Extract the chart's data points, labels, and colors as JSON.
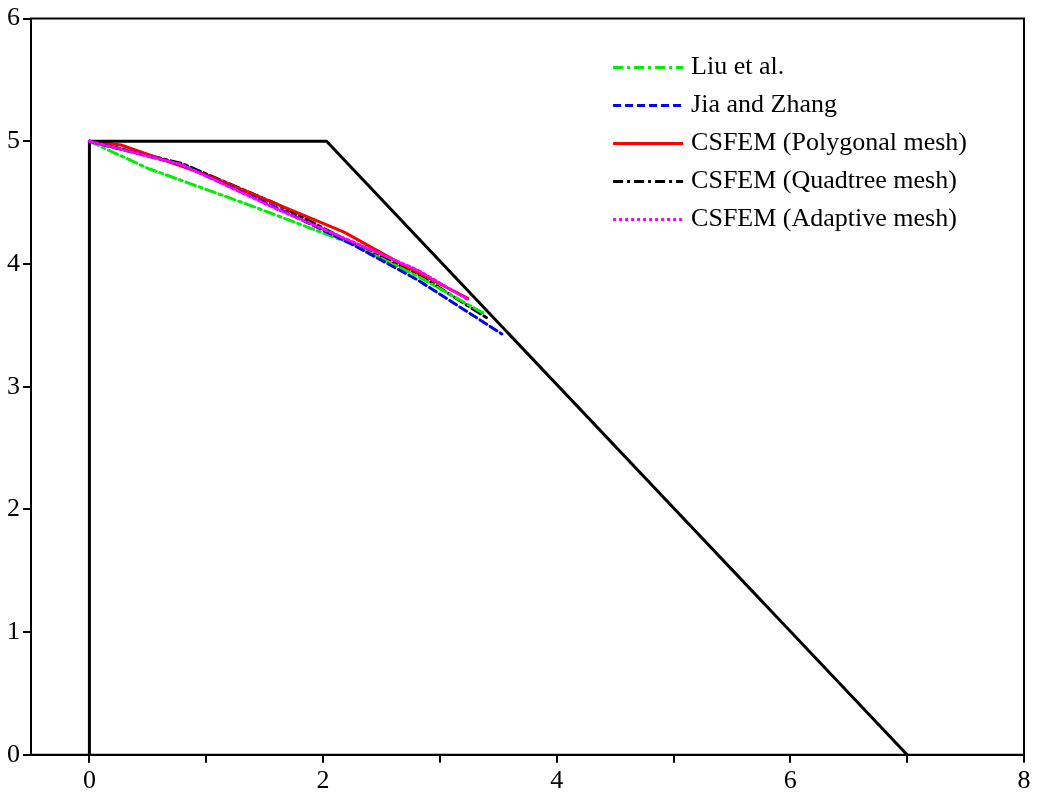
{
  "chart_data": {
    "type": "line",
    "xlim": [
      -0.5,
      8
    ],
    "ylim": [
      0,
      6
    ],
    "xticks": [
      0,
      {
        "value": 1,
        "label": null
      },
      2,
      {
        "value": 3,
        "label": null
      },
      4,
      {
        "value": 5,
        "label": null
      },
      6,
      {
        "value": 7,
        "label": null
      },
      8
    ],
    "yticks": [
      0,
      1,
      2,
      3,
      4,
      5,
      6
    ],
    "grid": false,
    "legend": "top right",
    "marker": "none",
    "series": [
      {
        "color": "#000000",
        "line_style": "solid",
        "x": [
          0,
          0,
          2.03,
          7
        ],
        "values": [
          0,
          5,
          5,
          0
        ]
      },
      {
        "name": "Liu et al.",
        "color": "#00ee00",
        "line_style": "dashdot",
        "x": [
          0,
          0.5,
          1.37,
          2.23,
          2.81,
          3.39
        ],
        "values": [
          5,
          4.78,
          4.48,
          4.17,
          3.9,
          3.59
        ]
      },
      {
        "name": "Jia and Zhang",
        "color": "#0000ee",
        "line_style": "dashed",
        "x": [
          0,
          0.79,
          1.6,
          2.23,
          2.81,
          3.53
        ],
        "values": [
          5,
          4.81,
          4.46,
          4.17,
          3.87,
          3.43
        ]
      },
      {
        "name": "CSFEM (Polygonal mesh)",
        "color": "#ff0000",
        "line_style": "solid",
        "x": [
          0,
          0.27,
          1.02,
          1.6,
          2.18,
          2.69,
          3.24
        ],
        "values": [
          5,
          4.97,
          4.72,
          4.49,
          4.26,
          3.99,
          3.72
        ]
      },
      {
        "name": "CSFEM (Quadtree mesh)",
        "color": "#000000",
        "line_style": "dashdot",
        "x": [
          0,
          0.79,
          1.6,
          2.23,
          2.81,
          3.42
        ],
        "values": [
          5,
          4.82,
          4.49,
          4.18,
          3.92,
          3.55
        ]
      },
      {
        "name": "CSFEM (Adaptive mesh)",
        "color": "#ff00ff",
        "line_style": "dotted",
        "x": [
          0,
          0.79,
          1.6,
          2.23,
          2.81,
          3.24
        ],
        "values": [
          5,
          4.81,
          4.45,
          4.19,
          3.95,
          3.71
        ]
      }
    ]
  }
}
